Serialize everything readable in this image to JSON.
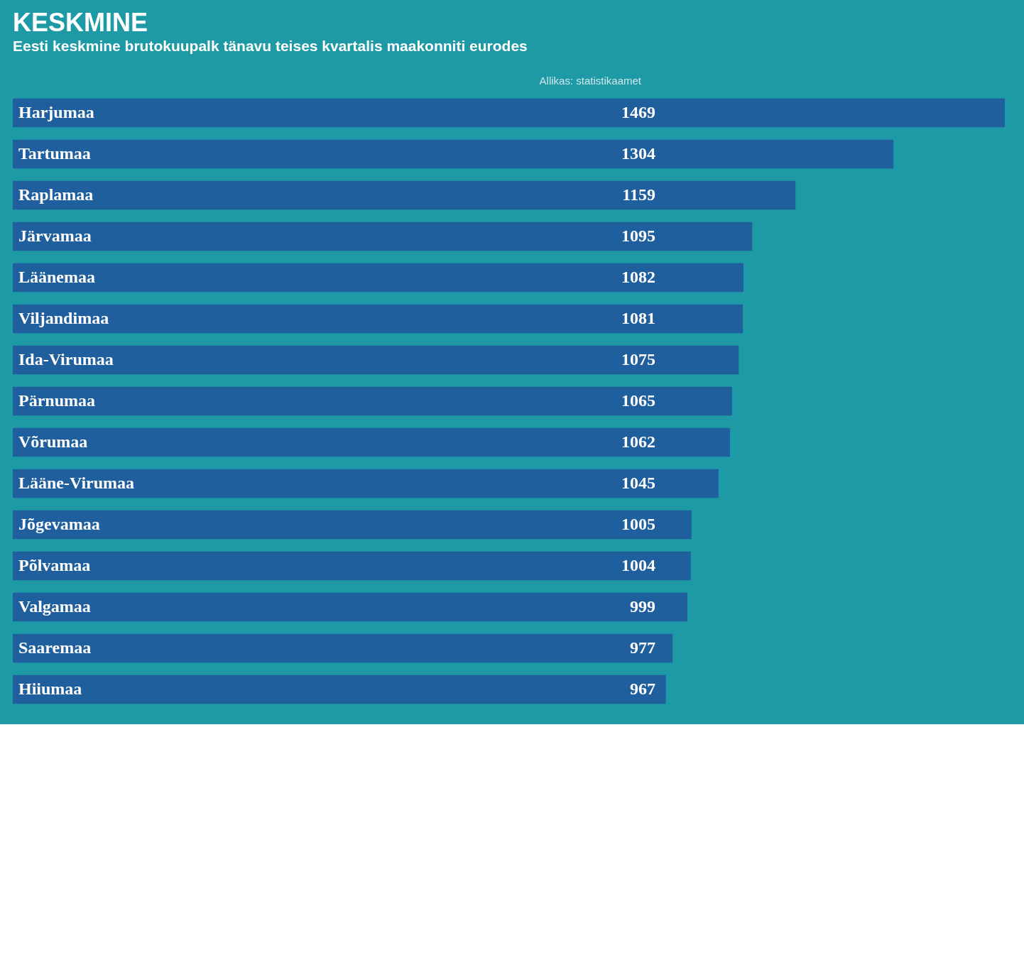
{
  "chart_data": {
    "type": "bar",
    "orientation": "horizontal",
    "title": "KESKMINE",
    "subtitle": "Eesti keskmine brutokuupalk tänavu teises kvartalis maakonniti eurodes",
    "annotations": [
      "Allikas: statistikaamet"
    ],
    "categories": [
      "Harjumaa",
      "Tartumaa",
      "Raplamaa",
      "Järvamaa",
      "Läänemaa",
      "Viljandimaa",
      "Ida-Virumaa",
      "Pärnumaa",
      "Võrumaa",
      "Lääne-Virumaa",
      "Jõgevamaa",
      "Põlvamaa",
      "Valgamaa",
      "Saaremaa",
      "Hiiumaa"
    ],
    "values": [
      1469,
      1304,
      1159,
      1095,
      1082,
      1081,
      1075,
      1065,
      1062,
      1045,
      1005,
      1004,
      999,
      977,
      967
    ],
    "color": "#1f5f9e",
    "data_labels": true
  }
}
